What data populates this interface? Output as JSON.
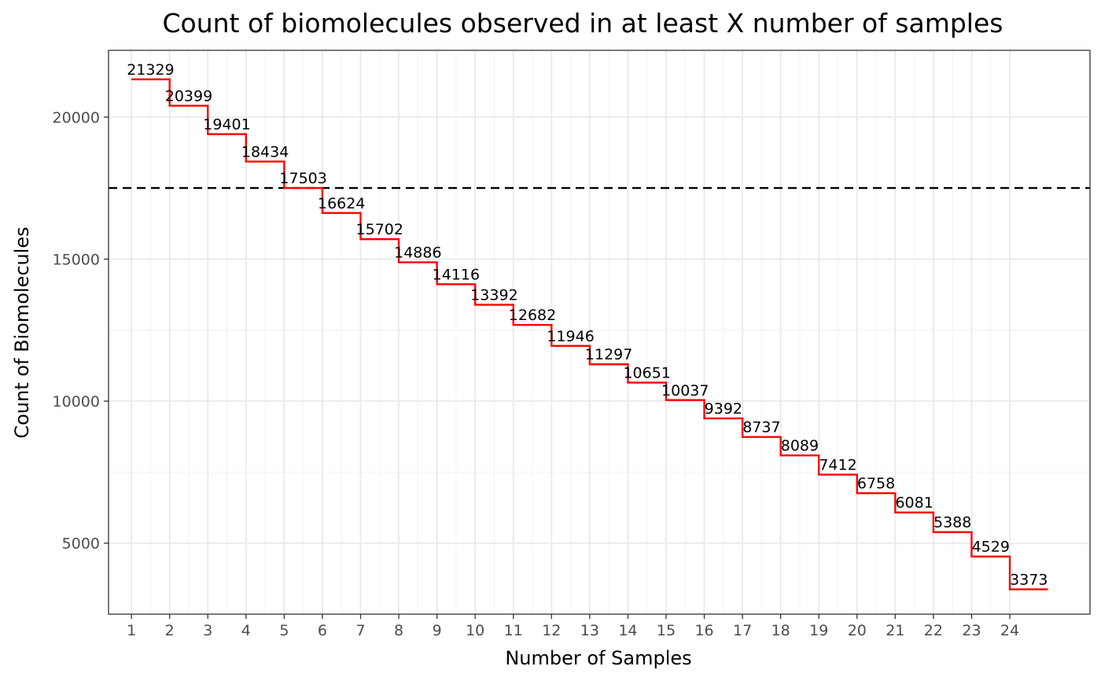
{
  "chart_data": {
    "type": "line",
    "title": "Count of biomolecules observed in at least X number of samples",
    "xlabel": "Number of Samples",
    "ylabel": "Count of Biomolecules",
    "x": [
      1,
      2,
      3,
      4,
      5,
      6,
      7,
      8,
      9,
      10,
      11,
      12,
      13,
      14,
      15,
      16,
      17,
      18,
      19,
      20,
      21,
      22,
      23,
      24
    ],
    "values": [
      21329,
      20399,
      19401,
      18434,
      17503,
      16624,
      15702,
      14886,
      14116,
      13392,
      12682,
      11946,
      11297,
      10651,
      10037,
      9392,
      8737,
      8089,
      7412,
      6758,
      6081,
      5388,
      4529,
      3373
    ],
    "data_labels": [
      "21329",
      "20399",
      "19401",
      "18434",
      "17503",
      "16624",
      "15702",
      "14886",
      "14116",
      "13392",
      "12682",
      "11946",
      "11297",
      "10651",
      "10037",
      "9392",
      "8737",
      "8089",
      "7412",
      "6758",
      "6081",
      "5388",
      "4529",
      "3373"
    ],
    "step": "post",
    "xlim": [
      0.4,
      26.1
    ],
    "ylim": [
      2500,
      22350
    ],
    "x_ticks": [
      "1",
      "2",
      "3",
      "4",
      "5",
      "6",
      "7",
      "8",
      "9",
      "10",
      "11",
      "12",
      "13",
      "14",
      "15",
      "16",
      "17",
      "18",
      "19",
      "20",
      "21",
      "22",
      "23",
      "24"
    ],
    "y_ticks": [
      "5000",
      "10000",
      "15000",
      "20000"
    ],
    "reference_line": {
      "y": 17503,
      "style": "dashed",
      "color": "#000000"
    },
    "line_color": "#ff0000",
    "grid": true,
    "legend": "none"
  }
}
